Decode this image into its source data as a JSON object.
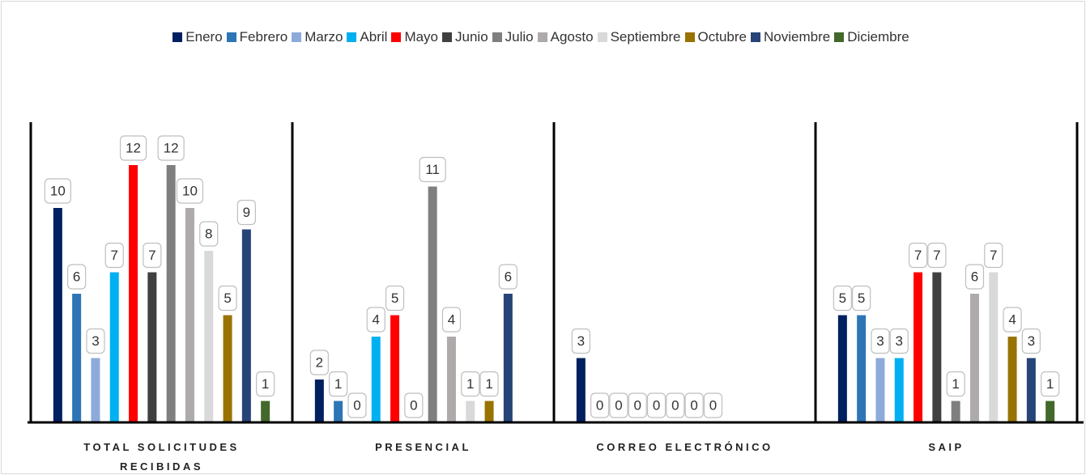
{
  "chart_data": {
    "type": "bar",
    "categories": [
      "TOTAL SOLICITUDES RECIBIDAS",
      "PRESENCIAL",
      "CORREO ELECTRÓNICO",
      "SAIP"
    ],
    "series": [
      {
        "name": "Enero",
        "color": "#002060",
        "values": [
          10,
          2,
          3,
          5
        ]
      },
      {
        "name": "Febrero",
        "color": "#2e75b6",
        "values": [
          6,
          1,
          0,
          5
        ]
      },
      {
        "name": "Marzo",
        "color": "#8eaadb",
        "values": [
          3,
          0,
          0,
          3
        ]
      },
      {
        "name": "Abril",
        "color": "#00b0f0",
        "values": [
          7,
          4,
          0,
          3
        ]
      },
      {
        "name": "Mayo",
        "color": "#ff0000",
        "values": [
          12,
          5,
          0,
          7
        ]
      },
      {
        "name": "Junio",
        "color": "#404040",
        "values": [
          7,
          0,
          0,
          7
        ]
      },
      {
        "name": "Julio",
        "color": "#7f7f7f",
        "values": [
          12,
          11,
          0,
          1
        ]
      },
      {
        "name": "Agosto",
        "color": "#aeaaaa",
        "values": [
          10,
          4,
          0,
          6
        ]
      },
      {
        "name": "Septiembre",
        "color": "#d9d9d9",
        "values": [
          8,
          1,
          null,
          7
        ]
      },
      {
        "name": "Octubre",
        "color": "#997300",
        "values": [
          5,
          1,
          null,
          4
        ]
      },
      {
        "name": "Noviembre",
        "color": "#264478",
        "values": [
          9,
          6,
          null,
          3
        ]
      },
      {
        "name": "Diciembre",
        "color": "#43682b",
        "values": [
          1,
          null,
          null,
          1
        ]
      }
    ],
    "ylim": [
      0,
      14
    ],
    "legend": "top"
  }
}
